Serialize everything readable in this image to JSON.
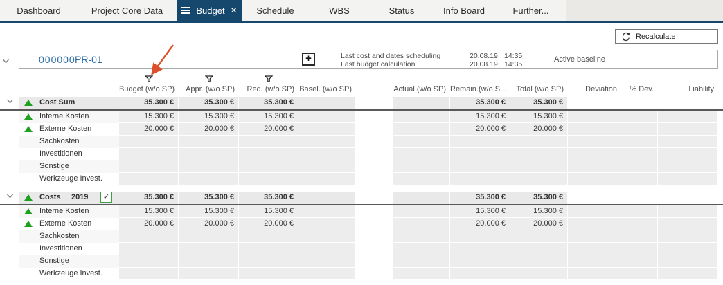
{
  "tabs": {
    "items": [
      {
        "label": "Dashboard",
        "active": false
      },
      {
        "label": "Project Core Data",
        "active": false
      },
      {
        "label": "Budget",
        "active": true
      },
      {
        "label": "Schedule",
        "active": false
      },
      {
        "label": "WBS",
        "active": false
      },
      {
        "label": "Status",
        "active": false
      },
      {
        "label": "Info Board",
        "active": false
      },
      {
        "label": "Further...",
        "active": false
      }
    ]
  },
  "toolbar": {
    "recalculate_label": "Recalculate"
  },
  "project": {
    "id": "000000",
    "code": "PR-01",
    "add_button": "+",
    "info": [
      {
        "label": "Last cost and dates scheduling",
        "date": "20.08.19",
        "time": "14:35"
      },
      {
        "label": "Last budget calculation",
        "date": "20.08.19",
        "time": "14:35"
      }
    ],
    "baseline_label": "Active baseline"
  },
  "icons": {
    "tab_menu": "hamburger-icon",
    "tab_close": "close-icon",
    "recalculate": "refresh-icon",
    "filter": "filter-icon",
    "expand": "chevron-down-icon",
    "status": "triangle-up-icon",
    "add": "plus-icon",
    "checkbox": "check-icon"
  },
  "colors": {
    "accent_navy": "#16476c",
    "link_blue": "#2a6da6",
    "status_green": "#1ea11e",
    "checkbox_green": "#3f9c47",
    "annotation_orange": "#dd4f28",
    "cell_gray": "#ededed",
    "group_gray": "#e9e9e9"
  },
  "table": {
    "columns": [
      "Budget (w/o SP)",
      "Appr. (w/o SP)",
      "Req. (w/o SP)",
      "Basel. (w/o SP)",
      "Actual (w/o SP)",
      "Remain.(w/o S...",
      "Total (w/o SP)",
      "Deviation",
      "% Dev.",
      "Liability"
    ],
    "filter_columns": [
      "Budget (w/o SP)",
      "Appr. (w/o SP)",
      "Req. (w/o SP)"
    ],
    "groups": [
      {
        "name": "Cost Sum",
        "year": "",
        "checkbox": false,
        "values": {
          "budget": "35.300 €",
          "appr": "35.300 €",
          "req": "35.300 €",
          "basel": "",
          "actual": "",
          "remain": "35.300 €",
          "total": "35.300 €",
          "deviation": "",
          "pdev": "",
          "liability": ""
        },
        "rows": [
          {
            "label": "Interne Kosten",
            "indicator": true,
            "values": {
              "budget": "15.300 €",
              "appr": "15.300 €",
              "req": "15.300 €",
              "remain": "15.300 €",
              "total": "15.300 €"
            }
          },
          {
            "label": "Externe Kosten",
            "indicator": true,
            "values": {
              "budget": "20.000 €",
              "appr": "20.000 €",
              "req": "20.000 €",
              "remain": "20.000 €",
              "total": "20.000 €"
            }
          },
          {
            "label": "Sachkosten",
            "indicator": false,
            "values": {}
          },
          {
            "label": "Investitionen",
            "indicator": false,
            "values": {}
          },
          {
            "label": "Sonstige",
            "indicator": false,
            "values": {}
          },
          {
            "label": "Werkzeuge Invest.",
            "indicator": false,
            "values": {}
          }
        ]
      },
      {
        "name": "Costs",
        "year": "2019",
        "checkbox": true,
        "checkbox_checked": "✓",
        "values": {
          "budget": "35.300 €",
          "appr": "35.300 €",
          "req": "35.300 €",
          "basel": "",
          "actual": "",
          "remain": "35.300 €",
          "total": "35.300 €",
          "deviation": "",
          "pdev": "",
          "liability": ""
        },
        "rows": [
          {
            "label": "Interne Kosten",
            "indicator": true,
            "values": {
              "budget": "15.300 €",
              "appr": "15.300 €",
              "req": "15.300 €",
              "remain": "15.300 €",
              "total": "15.300 €"
            }
          },
          {
            "label": "Externe Kosten",
            "indicator": true,
            "values": {
              "budget": "20.000 €",
              "appr": "20.000 €",
              "req": "20.000 €",
              "remain": "20.000 €",
              "total": "20.000 €"
            }
          },
          {
            "label": "Sachkosten",
            "indicator": false,
            "values": {}
          },
          {
            "label": "Investitionen",
            "indicator": false,
            "values": {}
          },
          {
            "label": "Sonstige",
            "indicator": false,
            "values": {}
          },
          {
            "label": "Werkzeuge Invest.",
            "indicator": false,
            "values": {}
          }
        ]
      }
    ]
  }
}
